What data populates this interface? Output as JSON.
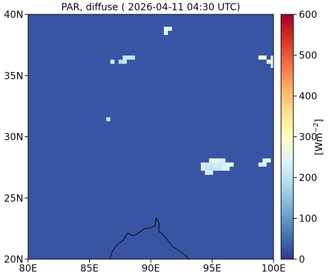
{
  "map": {
    "title": "PAR, diffuse ( 2026-04-11 04:30 UTC)",
    "projection": "plate-carree",
    "lon_range": [
      80,
      100
    ],
    "lat_range": [
      20,
      40
    ],
    "lon_ticks": [
      {
        "value": 80,
        "label": "80E"
      },
      {
        "value": 85,
        "label": "85E"
      },
      {
        "value": 90,
        "label": "90E"
      },
      {
        "value": 95,
        "label": "95E"
      },
      {
        "value": 100,
        "label": "100E"
      }
    ],
    "lat_ticks": [
      {
        "value": 40,
        "label": "40N"
      },
      {
        "value": 35,
        "label": "35N"
      },
      {
        "value": 30,
        "label": "30N"
      },
      {
        "value": 25,
        "label": "25N"
      },
      {
        "value": 20,
        "label": "20N"
      }
    ],
    "background_color": "#3a54a4",
    "coastline": true
  },
  "colorbar": {
    "label": "[Wm−2]",
    "label_main": "[Wm",
    "label_sup": "−2",
    "label_end": "]",
    "range": [
      0,
      600
    ],
    "ticks": [
      {
        "value": 600,
        "label": "600"
      },
      {
        "value": 500,
        "label": "500"
      },
      {
        "value": 400,
        "label": "400"
      },
      {
        "value": 300,
        "label": "300"
      },
      {
        "value": 200,
        "label": "200"
      },
      {
        "value": 100,
        "label": "100"
      },
      {
        "value": 0,
        "label": "0"
      }
    ],
    "colormap": "RdYlBu_r",
    "stops": [
      "#313695",
      "#4575b4",
      "#74add1",
      "#abd9e9",
      "#e0f3f8",
      "#ffffbf",
      "#fee090",
      "#fdae61",
      "#f46d43",
      "#d73027",
      "#a50026"
    ]
  }
}
